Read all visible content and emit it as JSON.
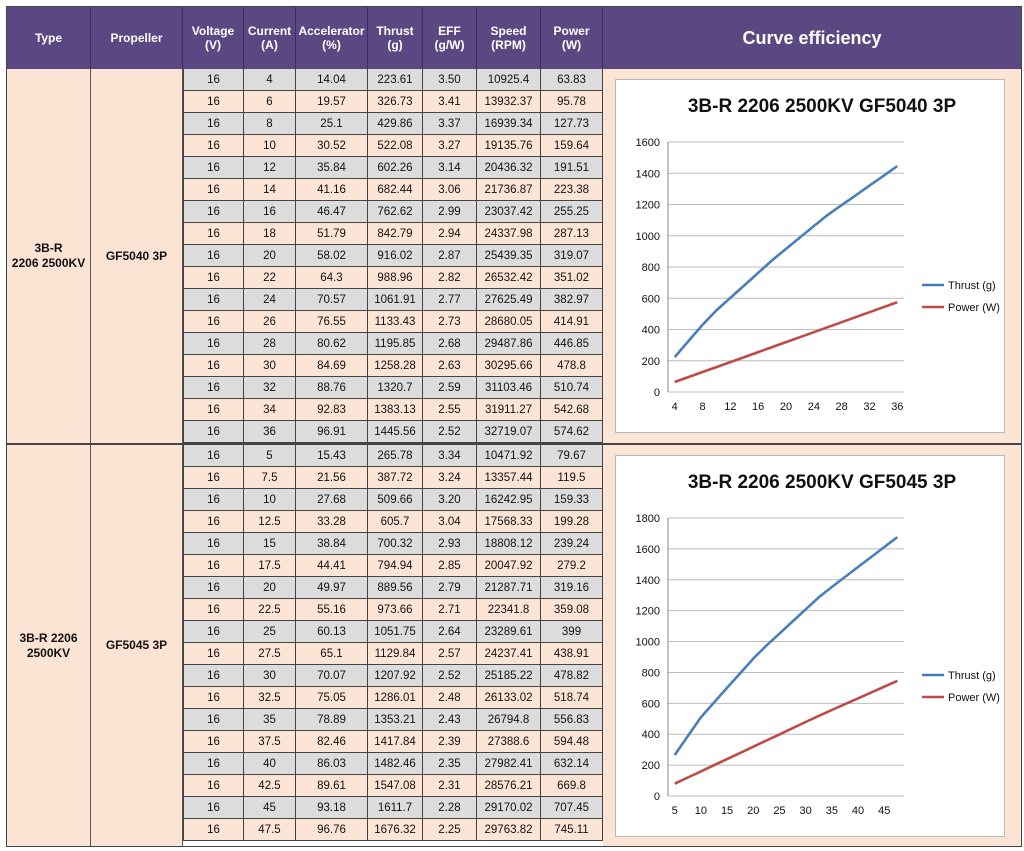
{
  "headers": {
    "type": "Type",
    "propeller": "Propeller",
    "voltage": "Voltage\n(V)",
    "current": "Current\n(A)",
    "accelerator": "Accelerator\n(%)",
    "thrust": "Thrust\n(g)",
    "eff": "EFF\n(g/W)",
    "speed": "Speed\n(RPM)",
    "power": "Power\n(W)",
    "curve": "Curve efficiency"
  },
  "groups": [
    {
      "type": "3B-R\n2206 2500KV",
      "propeller": "GF5040 3P",
      "rows": [
        [
          "16",
          "4",
          "14.04",
          "223.61",
          "3.50",
          "10925.4",
          "63.83"
        ],
        [
          "16",
          "6",
          "19.57",
          "326.73",
          "3.41",
          "13932.37",
          "95.78"
        ],
        [
          "16",
          "8",
          "25.1",
          "429.86",
          "3.37",
          "16939.34",
          "127.73"
        ],
        [
          "16",
          "10",
          "30.52",
          "522.08",
          "3.27",
          "19135.76",
          "159.64"
        ],
        [
          "16",
          "12",
          "35.84",
          "602.26",
          "3.14",
          "20436.32",
          "191.51"
        ],
        [
          "16",
          "14",
          "41.16",
          "682.44",
          "3.06",
          "21736.87",
          "223.38"
        ],
        [
          "16",
          "16",
          "46.47",
          "762.62",
          "2.99",
          "23037.42",
          "255.25"
        ],
        [
          "16",
          "18",
          "51.79",
          "842.79",
          "2.94",
          "24337.98",
          "287.13"
        ],
        [
          "16",
          "20",
          "58.02",
          "916.02",
          "2.87",
          "25439.35",
          "319.07"
        ],
        [
          "16",
          "22",
          "64.3",
          "988.96",
          "2.82",
          "26532.42",
          "351.02"
        ],
        [
          "16",
          "24",
          "70.57",
          "1061.91",
          "2.77",
          "27625.49",
          "382.97"
        ],
        [
          "16",
          "26",
          "76.55",
          "1133.43",
          "2.73",
          "28680.05",
          "414.91"
        ],
        [
          "16",
          "28",
          "80.62",
          "1195.85",
          "2.68",
          "29487.86",
          "446.85"
        ],
        [
          "16",
          "30",
          "84.69",
          "1258.28",
          "2.63",
          "30295.66",
          "478.8"
        ],
        [
          "16",
          "32",
          "88.76",
          "1320.7",
          "2.59",
          "31103.46",
          "510.74"
        ],
        [
          "16",
          "34",
          "92.83",
          "1383.13",
          "2.55",
          "31911.27",
          "542.68"
        ],
        [
          "16",
          "36",
          "96.91",
          "1445.56",
          "2.52",
          "32719.07",
          "574.62"
        ]
      ]
    },
    {
      "type": "3B-R 2206\n2500KV",
      "propeller": "GF5045 3P",
      "rows": [
        [
          "16",
          "5",
          "15.43",
          "265.78",
          "3.34",
          "10471.92",
          "79.67"
        ],
        [
          "16",
          "7.5",
          "21.56",
          "387.72",
          "3.24",
          "13357.44",
          "119.5"
        ],
        [
          "16",
          "10",
          "27.68",
          "509.66",
          "3.20",
          "16242.95",
          "159.33"
        ],
        [
          "16",
          "12.5",
          "33.28",
          "605.7",
          "3.04",
          "17568.33",
          "199.28"
        ],
        [
          "16",
          "15",
          "38.84",
          "700.32",
          "2.93",
          "18808.12",
          "239.24"
        ],
        [
          "16",
          "17.5",
          "44.41",
          "794.94",
          "2.85",
          "20047.92",
          "279.2"
        ],
        [
          "16",
          "20",
          "49.97",
          "889.56",
          "2.79",
          "21287.71",
          "319.16"
        ],
        [
          "16",
          "22.5",
          "55.16",
          "973.66",
          "2.71",
          "22341.8",
          "359.08"
        ],
        [
          "16",
          "25",
          "60.13",
          "1051.75",
          "2.64",
          "23289.61",
          "399"
        ],
        [
          "16",
          "27.5",
          "65.1",
          "1129.84",
          "2.57",
          "24237.41",
          "438.91"
        ],
        [
          "16",
          "30",
          "70.07",
          "1207.92",
          "2.52",
          "25185.22",
          "478.82"
        ],
        [
          "16",
          "32.5",
          "75.05",
          "1286.01",
          "2.48",
          "26133.02",
          "518.74"
        ],
        [
          "16",
          "35",
          "78.89",
          "1353.21",
          "2.43",
          "26794.8",
          "556.83"
        ],
        [
          "16",
          "37.5",
          "82.46",
          "1417.84",
          "2.39",
          "27388.6",
          "594.48"
        ],
        [
          "16",
          "40",
          "86.03",
          "1482.46",
          "2.35",
          "27982.41",
          "632.14"
        ],
        [
          "16",
          "42.5",
          "89.61",
          "1547.08",
          "2.31",
          "28576.21",
          "669.8"
        ],
        [
          "16",
          "45",
          "93.18",
          "1611.7",
          "2.28",
          "29170.02",
          "707.45"
        ],
        [
          "16",
          "47.5",
          "96.76",
          "1676.32",
          "2.25",
          "29763.82",
          "745.11"
        ]
      ]
    }
  ],
  "chart_data": [
    {
      "type": "line",
      "title": "3B-R 2206 2500KV GF5040 3P",
      "xlabel": "",
      "ylabel": "",
      "x": [
        4,
        6,
        8,
        10,
        12,
        14,
        16,
        18,
        20,
        22,
        24,
        26,
        28,
        30,
        32,
        34,
        36
      ],
      "xticks": [
        "4",
        "8",
        "12",
        "16",
        "20",
        "24",
        "28",
        "32",
        "36"
      ],
      "xlim": [
        4,
        36
      ],
      "ylim": [
        0,
        1600
      ],
      "yticks": [
        "0",
        "200",
        "400",
        "600",
        "800",
        "1000",
        "1200",
        "1400",
        "1600"
      ],
      "series": [
        {
          "name": "Thrust (g)",
          "color": "#4a7ebb",
          "values": [
            223.61,
            326.73,
            429.86,
            522.08,
            602.26,
            682.44,
            762.62,
            842.79,
            916.02,
            988.96,
            1061.91,
            1133.43,
            1195.85,
            1258.28,
            1320.7,
            1383.13,
            1445.56
          ]
        },
        {
          "name": "Power (W)",
          "color": "#be4b48",
          "values": [
            63.83,
            95.78,
            127.73,
            159.64,
            191.51,
            223.38,
            255.25,
            287.13,
            319.07,
            351.02,
            382.97,
            414.91,
            446.85,
            478.8,
            510.74,
            542.68,
            574.62
          ]
        }
      ],
      "grid": true,
      "legend": "right"
    },
    {
      "type": "line",
      "title": "3B-R 2206 2500KV GF5045 3P",
      "xlabel": "",
      "ylabel": "",
      "x": [
        5,
        7.5,
        10,
        12.5,
        15,
        17.5,
        20,
        22.5,
        25,
        27.5,
        30,
        32.5,
        35,
        37.5,
        40,
        42.5,
        45,
        47.5
      ],
      "xticks": [
        "5",
        "10",
        "15",
        "20",
        "25",
        "30",
        "35",
        "40",
        "45"
      ],
      "xlim": [
        5,
        47.5
      ],
      "ylim": [
        0,
        1800
      ],
      "yticks": [
        "0",
        "200",
        "400",
        "600",
        "800",
        "1000",
        "1200",
        "1400",
        "1600",
        "1800"
      ],
      "series": [
        {
          "name": "Thrust (g)",
          "color": "#4a7ebb",
          "values": [
            265.78,
            387.72,
            509.66,
            605.7,
            700.32,
            794.94,
            889.56,
            973.66,
            1051.75,
            1129.84,
            1207.92,
            1286.01,
            1353.21,
            1417.84,
            1482.46,
            1547.08,
            1611.7,
            1676.32
          ]
        },
        {
          "name": "Power (W)",
          "color": "#be4b48",
          "values": [
            79.67,
            119.5,
            159.33,
            199.28,
            239.24,
            279.2,
            319.16,
            359.08,
            399,
            438.91,
            478.82,
            518.74,
            556.83,
            594.48,
            632.14,
            669.8,
            707.45,
            745.11
          ]
        }
      ],
      "grid": true,
      "legend": "right"
    }
  ]
}
